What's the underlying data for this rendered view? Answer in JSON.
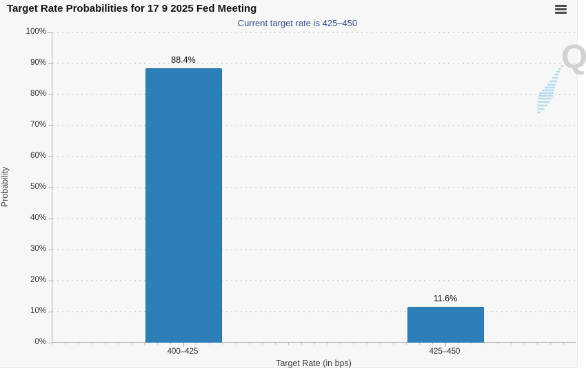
{
  "header": {
    "title": "Target Rate Probabilities for 17 9 2025 Fed Meeting"
  },
  "subtitle": "Current target rate is 425–450",
  "watermark": {
    "letter": "Q"
  },
  "icons": {
    "menu": "hamburger-icon"
  },
  "colors": {
    "bar": "#2d7fb8",
    "bar_border": "#2773a6",
    "subtitle_text": "#31508d",
    "widget_background": "#f7f7f7",
    "axis_line": "#aeaeae",
    "gridline_dots": "#d8d8d8",
    "tick_label": "#333333",
    "title_text": "#111111",
    "watermark_q": "#d2d2d2",
    "watermark_stripes": "#b8dbf0",
    "menu_icon": "#4a4a4a"
  },
  "chart_data": {
    "type": "bar",
    "title": "Target Rate Probabilities for 17 9 2025 Fed Meeting",
    "subtitle": "Current target rate is 425–450",
    "categories": [
      "400–425",
      "425–450"
    ],
    "values": [
      88.4,
      11.6
    ],
    "value_labels": [
      "88.4%",
      "11.6%"
    ],
    "xlabel": "Target Rate (in bps)",
    "ylabel": "Probability",
    "ylim": [
      0,
      100
    ],
    "ytick_step": 10,
    "ytick_labels": [
      "0%",
      "10%",
      "20%",
      "30%",
      "40%",
      "50%",
      "60%",
      "70%",
      "80%",
      "90%",
      "100%"
    ],
    "grid": "horizontal-dotted",
    "legend": "none"
  }
}
